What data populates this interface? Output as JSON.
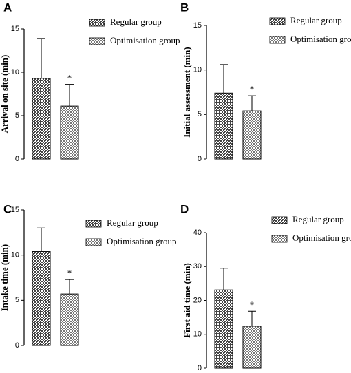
{
  "chart_data": [
    {
      "type": "bar",
      "panel": "A",
      "ylabel": "Arrival on site (min)",
      "ylim": [
        0,
        15
      ],
      "yticks": [
        0,
        5,
        10,
        15
      ],
      "annotation": "*",
      "series": [
        {
          "name": "Regular group",
          "color": "#444444",
          "values": [
            9.3
          ],
          "errors": [
            4.6
          ]
        },
        {
          "name": "Optimisation group",
          "color": "#777777",
          "values": [
            6.1
          ],
          "errors": [
            2.5
          ]
        }
      ]
    },
    {
      "type": "bar",
      "panel": "B",
      "ylabel": "Initial assessment (min)",
      "ylim": [
        0,
        15
      ],
      "yticks": [
        0,
        5,
        10,
        15
      ],
      "annotation": "*",
      "series": [
        {
          "name": "Regular group",
          "color": "#444444",
          "values": [
            7.4
          ],
          "errors": [
            3.2
          ]
        },
        {
          "name": "Optimisation group",
          "color": "#777777",
          "values": [
            5.4
          ],
          "errors": [
            1.7
          ]
        }
      ]
    },
    {
      "type": "bar",
      "panel": "C",
      "ylabel": "Intake time (min)",
      "ylim": [
        0,
        15
      ],
      "yticks": [
        0,
        5,
        10,
        15
      ],
      "annotation": "*",
      "series": [
        {
          "name": "Regular group",
          "color": "#444444",
          "values": [
            10.4
          ],
          "errors": [
            2.6
          ]
        },
        {
          "name": "Optimisation group",
          "color": "#777777",
          "values": [
            5.7
          ],
          "errors": [
            1.6
          ]
        }
      ]
    },
    {
      "type": "bar",
      "panel": "D",
      "ylabel": "First aid time (min)",
      "ylim": [
        0,
        40
      ],
      "yticks": [
        0,
        10,
        20,
        30,
        40
      ],
      "annotation": "*",
      "series": [
        {
          "name": "Regular group",
          "color": "#444444",
          "values": [
            23.1
          ],
          "errors": [
            6.4
          ]
        },
        {
          "name": "Optimisation group",
          "color": "#777777",
          "values": [
            12.4
          ],
          "errors": [
            4.4
          ]
        }
      ]
    }
  ]
}
